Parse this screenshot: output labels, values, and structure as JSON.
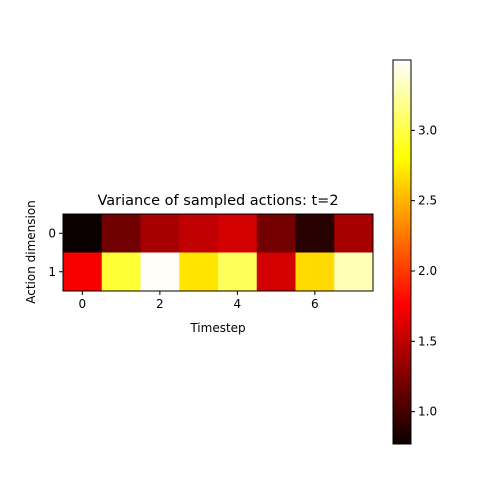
{
  "chart_data": {
    "type": "heatmap",
    "title": "Variance of sampled actions: t=2",
    "xlabel": "Timestep",
    "ylabel": "Action dimension",
    "x": [
      0,
      1,
      2,
      3,
      4,
      5,
      6,
      7
    ],
    "y": [
      0,
      1
    ],
    "x_ticks": [
      "0",
      "2",
      "4",
      "6"
    ],
    "y_ticks": [
      "0",
      "1"
    ],
    "values": [
      [
        0.77,
        1.17,
        1.38,
        1.48,
        1.55,
        1.18,
        0.88,
        1.38
      ],
      [
        1.7,
        2.95,
        3.48,
        2.7,
        3.05,
        1.55,
        2.65,
        3.3
      ]
    ],
    "colormap": "hot",
    "colorbar": {
      "min": 0.77,
      "max": 3.5,
      "ticks": [
        1.0,
        1.5,
        2.0,
        2.5,
        3.0
      ],
      "tick_labels": [
        "1.0",
        "1.5",
        "2.0",
        "2.5",
        "3.0"
      ]
    }
  }
}
